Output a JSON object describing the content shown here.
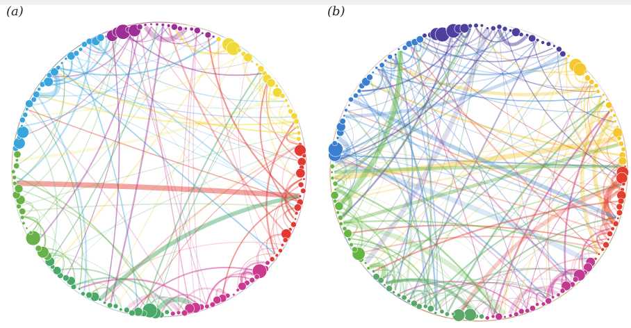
{
  "panels": [
    {
      "label": "(a)",
      "groups": [
        {
          "color": "#9b2f96",
          "nodes": 20,
          "big": [
            5,
            1,
            3
          ]
        },
        {
          "color": "#f1d93a",
          "nodes": 24,
          "big": [
            2,
            3
          ]
        },
        {
          "color": "#e23a33",
          "nodes": 22,
          "big": [
            1
          ]
        },
        {
          "color": "#cc3a8f",
          "nodes": 20,
          "big": [
            2
          ]
        },
        {
          "color": "#4aa96a",
          "nodes": 24,
          "big": [
            3,
            2
          ]
        },
        {
          "color": "#69b24a",
          "nodes": 20,
          "big": [
            1,
            4
          ]
        },
        {
          "color": "#38a6dd",
          "nodes": 26,
          "big": [
            3,
            1
          ]
        }
      ],
      "link_density": 0.55
    },
    {
      "label": "(b)",
      "groups": [
        {
          "color": "#4c3f9e",
          "nodes": 26,
          "big": [
            2,
            5,
            3
          ]
        },
        {
          "color": "#f4c72c",
          "nodes": 22,
          "big": [
            2,
            3
          ]
        },
        {
          "color": "#e33d2f",
          "nodes": 18,
          "big": [
            1,
            2
          ]
        },
        {
          "color": "#c23a8f",
          "nodes": 22,
          "big": [
            3
          ]
        },
        {
          "color": "#5aa869",
          "nodes": 22,
          "big": [
            2,
            4
          ]
        },
        {
          "color": "#66b646",
          "nodes": 20,
          "big": [
            3
          ]
        },
        {
          "color": "#3b7fd0",
          "nodes": 28,
          "big": [
            2,
            1
          ]
        }
      ],
      "link_density": 1
    }
  ]
}
